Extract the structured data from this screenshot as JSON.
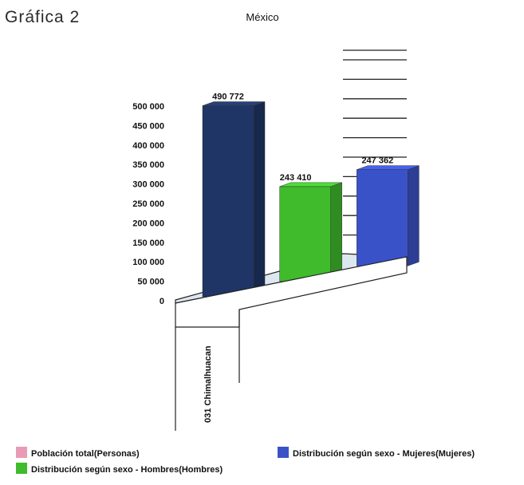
{
  "page": {
    "heading": "Gráfica 2"
  },
  "chart_data": {
    "type": "bar",
    "title": "México",
    "categories": [
      "031 Chimalhuacan"
    ],
    "series": [
      {
        "name": "Población total(Personas)",
        "values": [
          490772
        ],
        "label": "490 772",
        "color": "#1f3566"
      },
      {
        "name": "Distribución según sexo - Hombres(Hombres)",
        "values": [
          243410
        ],
        "label": "243 410",
        "color": "#3fbb2c"
      },
      {
        "name": "Distribución según sexo - Mujeres(Mujeres)",
        "values": [
          247362
        ],
        "label": "247 362",
        "color": "#3a52c8"
      }
    ],
    "legend_swatches": [
      "#e99bb5",
      "#3fbb2c",
      "#3a52c8"
    ],
    "ylim": [
      0,
      500000
    ],
    "yticks": [
      {
        "value": 500000,
        "label": "500 000"
      },
      {
        "value": 450000,
        "label": "450 000"
      },
      {
        "value": 400000,
        "label": "400 000"
      },
      {
        "value": 350000,
        "label": "350 000"
      },
      {
        "value": 300000,
        "label": "300 000"
      },
      {
        "value": 250000,
        "label": "250 000"
      },
      {
        "value": 200000,
        "label": "200 000"
      },
      {
        "value": 150000,
        "label": "150 000"
      },
      {
        "value": 100000,
        "label": "100 000"
      },
      {
        "value": 50000,
        "label": "50 000"
      },
      {
        "value": 0,
        "label": "0"
      }
    ],
    "legend_position": "bottom",
    "grid": true
  }
}
